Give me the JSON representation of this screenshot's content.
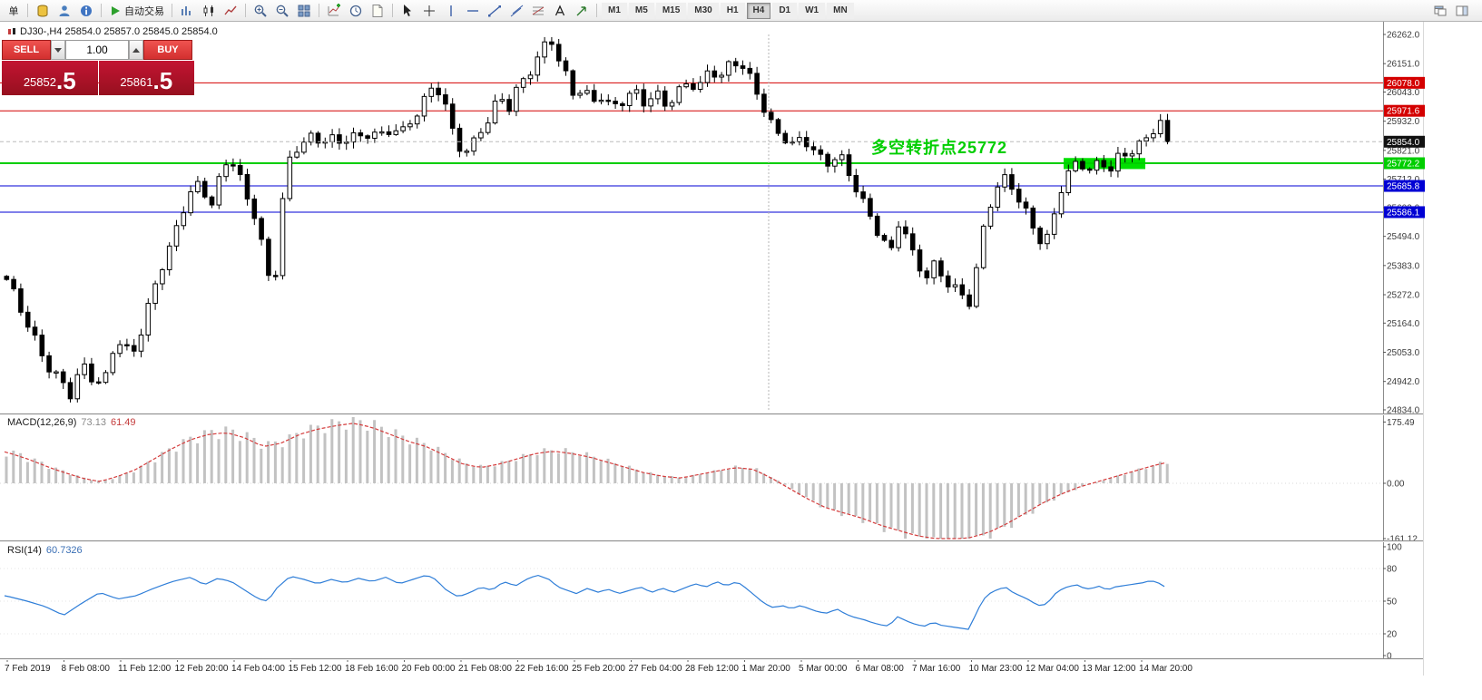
{
  "toolbar": {
    "new_order_label": "单",
    "autotrading_label": "自动交易",
    "timeframes": [
      "M1",
      "M5",
      "M15",
      "M30",
      "H1",
      "H4",
      "D1",
      "W1",
      "MN"
    ],
    "active_timeframe": "H4"
  },
  "trade_panel": {
    "sell_label": "SELL",
    "buy_label": "BUY",
    "volume": "1.00",
    "sell_price_small": "25852",
    "sell_price_large": ".5",
    "buy_price_small": "25861",
    "buy_price_large": ".5"
  },
  "chart": {
    "title": "DJ30-,H4 25854.0 25857.0 25845.0 25854.0",
    "annotation": {
      "text": "多空转折点25772",
      "color": "#00CE00"
    },
    "current_price": {
      "value": 25854.0,
      "label": "25854.0",
      "bg": "#111111"
    },
    "levels": [
      {
        "value": 26078.0,
        "label": "26078.0",
        "color": "#D40000",
        "width": 1
      },
      {
        "value": 25971.6,
        "label": "25971.6",
        "color": "#D40000",
        "width": 1
      },
      {
        "value": 25772.2,
        "label": "25772.2",
        "color": "#00CE00",
        "width": 2
      },
      {
        "value": 25685.8,
        "label": "25685.8",
        "color": "#0000D4",
        "width": 1
      },
      {
        "value": 25586.1,
        "label": "25586.1",
        "color": "#0000D4",
        "width": 1
      }
    ],
    "y_tick_labels": [
      "26262.0",
      "26151.0",
      "26043.0",
      "25932.0",
      "25821.0",
      "25712.0",
      "25603.0",
      "25494.0",
      "25383.0",
      "25272.0",
      "25164.0",
      "25053.0",
      "24942.0",
      "24834.0"
    ],
    "highlight_box": {
      "x_start": 1172,
      "x_end": 1262,
      "price_top": 25792,
      "price_bottom": 25750,
      "color": "#00DF00"
    },
    "separator_x": 847
  },
  "chart_data": {
    "type": "candlestick",
    "symbol": "DJ30-",
    "timeframe": "H4",
    "price_range": [
      24834.0,
      26262.0
    ],
    "note": "close path estimated from pixels as [x_px, price] anchors; OHLC derived",
    "last_close": 25854.0,
    "price_path": [
      [
        6,
        25330
      ],
      [
        28,
        25160
      ],
      [
        50,
        25000
      ],
      [
        66,
        24940
      ],
      [
        76,
        24890
      ],
      [
        88,
        25010
      ],
      [
        100,
        24950
      ],
      [
        112,
        24930
      ],
      [
        122,
        25060
      ],
      [
        132,
        25100
      ],
      [
        142,
        25030
      ],
      [
        152,
        25120
      ],
      [
        164,
        25260
      ],
      [
        176,
        25380
      ],
      [
        188,
        25480
      ],
      [
        200,
        25600
      ],
      [
        212,
        25700
      ],
      [
        222,
        25660
      ],
      [
        232,
        25620
      ],
      [
        242,
        25740
      ],
      [
        252,
        25800
      ],
      [
        262,
        25720
      ],
      [
        272,
        25610
      ],
      [
        282,
        25560
      ],
      [
        292,
        25340
      ],
      [
        300,
        25300
      ],
      [
        306,
        25560
      ],
      [
        314,
        25760
      ],
      [
        324,
        25820
      ],
      [
        336,
        25880
      ],
      [
        348,
        25850
      ],
      [
        360,
        25880
      ],
      [
        372,
        25840
      ],
      [
        384,
        25890
      ],
      [
        396,
        25860
      ],
      [
        408,
        25900
      ],
      [
        420,
        25870
      ],
      [
        432,
        25910
      ],
      [
        444,
        25890
      ],
      [
        456,
        25960
      ],
      [
        468,
        26030
      ],
      [
        478,
        26070
      ],
      [
        488,
        26000
      ],
      [
        498,
        25870
      ],
      [
        508,
        25810
      ],
      [
        518,
        25840
      ],
      [
        528,
        25900
      ],
      [
        538,
        25950
      ],
      [
        548,
        26030
      ],
      [
        558,
        25980
      ],
      [
        568,
        26060
      ],
      [
        578,
        26100
      ],
      [
        588,
        26160
      ],
      [
        598,
        26220
      ],
      [
        606,
        26240
      ],
      [
        614,
        26160
      ],
      [
        622,
        26100
      ],
      [
        630,
        26030
      ],
      [
        640,
        26060
      ],
      [
        650,
        26000
      ],
      [
        660,
        26030
      ],
      [
        672,
        25980
      ],
      [
        684,
        26010
      ],
      [
        696,
        26050
      ],
      [
        708,
        26000
      ],
      [
        720,
        26040
      ],
      [
        732,
        25990
      ],
      [
        744,
        26040
      ],
      [
        756,
        26080
      ],
      [
        768,
        26060
      ],
      [
        780,
        26130
      ],
      [
        792,
        26100
      ],
      [
        802,
        26150
      ],
      [
        812,
        26160
      ],
      [
        822,
        26110
      ],
      [
        832,
        26040
      ],
      [
        842,
        25960
      ],
      [
        852,
        25890
      ],
      [
        862,
        25870
      ],
      [
        872,
        25840
      ],
      [
        882,
        25870
      ],
      [
        892,
        25830
      ],
      [
        902,
        25790
      ],
      [
        912,
        25770
      ],
      [
        922,
        25810
      ],
      [
        932,
        25740
      ],
      [
        942,
        25670
      ],
      [
        952,
        25600
      ],
      [
        962,
        25530
      ],
      [
        972,
        25470
      ],
      [
        980,
        25440
      ],
      [
        988,
        25550
      ],
      [
        996,
        25500
      ],
      [
        1004,
        25420
      ],
      [
        1012,
        25370
      ],
      [
        1020,
        25340
      ],
      [
        1028,
        25390
      ],
      [
        1036,
        25340
      ],
      [
        1044,
        25310
      ],
      [
        1052,
        25290
      ],
      [
        1060,
        25260
      ],
      [
        1068,
        25240
      ],
      [
        1076,
        25420
      ],
      [
        1084,
        25570
      ],
      [
        1092,
        25650
      ],
      [
        1100,
        25700
      ],
      [
        1108,
        25720
      ],
      [
        1116,
        25660
      ],
      [
        1124,
        25610
      ],
      [
        1132,
        25560
      ],
      [
        1140,
        25500
      ],
      [
        1148,
        25460
      ],
      [
        1156,
        25520
      ],
      [
        1164,
        25650
      ],
      [
        1172,
        25720
      ],
      [
        1180,
        25760
      ],
      [
        1188,
        25780
      ],
      [
        1196,
        25740
      ],
      [
        1204,
        25760
      ],
      [
        1212,
        25780
      ],
      [
        1220,
        25740
      ],
      [
        1228,
        25790
      ],
      [
        1236,
        25800
      ],
      [
        1244,
        25820
      ],
      [
        1252,
        25840
      ],
      [
        1260,
        25860
      ],
      [
        1268,
        25900
      ],
      [
        1276,
        25930
      ],
      [
        1288,
        25854
      ]
    ],
    "macd": {
      "title": "MACD(12,26,9)",
      "value_main": "73.13",
      "value_signal": "61.49",
      "y_ticks": [
        175.49,
        0,
        -161.12
      ],
      "y_tick_labels": [
        "175.49",
        "0.00",
        "-161.12"
      ],
      "path": [
        [
          6,
          90
        ],
        [
          30,
          70
        ],
        [
          60,
          40
        ],
        [
          90,
          15
        ],
        [
          110,
          5
        ],
        [
          130,
          20
        ],
        [
          150,
          40
        ],
        [
          170,
          70
        ],
        [
          190,
          100
        ],
        [
          210,
          125
        ],
        [
          230,
          140
        ],
        [
          250,
          145
        ],
        [
          270,
          130
        ],
        [
          290,
          105
        ],
        [
          310,
          115
        ],
        [
          330,
          140
        ],
        [
          350,
          155
        ],
        [
          370,
          165
        ],
        [
          390,
          172
        ],
        [
          410,
          160
        ],
        [
          430,
          140
        ],
        [
          450,
          120
        ],
        [
          470,
          105
        ],
        [
          490,
          80
        ],
        [
          510,
          55
        ],
        [
          530,
          45
        ],
        [
          550,
          55
        ],
        [
          570,
          70
        ],
        [
          590,
          85
        ],
        [
          610,
          92
        ],
        [
          630,
          85
        ],
        [
          650,
          75
        ],
        [
          670,
          60
        ],
        [
          690,
          45
        ],
        [
          710,
          30
        ],
        [
          730,
          20
        ],
        [
          750,
          15
        ],
        [
          770,
          25
        ],
        [
          790,
          35
        ],
        [
          810,
          45
        ],
        [
          830,
          40
        ],
        [
          850,
          15
        ],
        [
          870,
          -15
        ],
        [
          890,
          -45
        ],
        [
          910,
          -70
        ],
        [
          930,
          -85
        ],
        [
          950,
          -100
        ],
        [
          970,
          -120
        ],
        [
          990,
          -135
        ],
        [
          1010,
          -150
        ],
        [
          1030,
          -158
        ],
        [
          1050,
          -161
        ],
        [
          1070,
          -155
        ],
        [
          1090,
          -140
        ],
        [
          1110,
          -115
        ],
        [
          1130,
          -85
        ],
        [
          1150,
          -55
        ],
        [
          1170,
          -30
        ],
        [
          1190,
          -10
        ],
        [
          1210,
          5
        ],
        [
          1230,
          20
        ],
        [
          1250,
          35
        ],
        [
          1270,
          50
        ],
        [
          1288,
          61
        ]
      ]
    },
    "rsi": {
      "title": "RSI(14)",
      "value": "60.7326",
      "y_ticks": [
        100,
        80,
        50,
        20,
        0
      ],
      "y_tick_labels": [
        "100",
        "80",
        "50",
        "20",
        "0"
      ],
      "path": [
        [
          6,
          55
        ],
        [
          30,
          50
        ],
        [
          50,
          45
        ],
        [
          70,
          37
        ],
        [
          90,
          48
        ],
        [
          110,
          58
        ],
        [
          130,
          52
        ],
        [
          150,
          55
        ],
        [
          170,
          62
        ],
        [
          190,
          68
        ],
        [
          210,
          72
        ],
        [
          225,
          65
        ],
        [
          240,
          71
        ],
        [
          255,
          68
        ],
        [
          270,
          60
        ],
        [
          285,
          52
        ],
        [
          295,
          50
        ],
        [
          305,
          62
        ],
        [
          320,
          73
        ],
        [
          335,
          70
        ],
        [
          350,
          66
        ],
        [
          365,
          70
        ],
        [
          380,
          67
        ],
        [
          395,
          71
        ],
        [
          410,
          68
        ],
        [
          425,
          72
        ],
        [
          440,
          66
        ],
        [
          455,
          70
        ],
        [
          470,
          74
        ],
        [
          480,
          70
        ],
        [
          492,
          60
        ],
        [
          505,
          54
        ],
        [
          518,
          58
        ],
        [
          530,
          63
        ],
        [
          542,
          60
        ],
        [
          555,
          68
        ],
        [
          568,
          64
        ],
        [
          580,
          70
        ],
        [
          592,
          74
        ],
        [
          605,
          70
        ],
        [
          615,
          63
        ],
        [
          625,
          60
        ],
        [
          635,
          57
        ],
        [
          648,
          62
        ],
        [
          658,
          58
        ],
        [
          670,
          61
        ],
        [
          682,
          57
        ],
        [
          694,
          60
        ],
        [
          706,
          63
        ],
        [
          718,
          58
        ],
        [
          730,
          62
        ],
        [
          742,
          58
        ],
        [
          754,
          62
        ],
        [
          766,
          66
        ],
        [
          778,
          63
        ],
        [
          790,
          68
        ],
        [
          800,
          64
        ],
        [
          812,
          68
        ],
        [
          822,
          62
        ],
        [
          832,
          55
        ],
        [
          842,
          48
        ],
        [
          852,
          44
        ],
        [
          862,
          46
        ],
        [
          872,
          43
        ],
        [
          882,
          46
        ],
        [
          892,
          43
        ],
        [
          902,
          40
        ],
        [
          912,
          39
        ],
        [
          922,
          43
        ],
        [
          932,
          38
        ],
        [
          942,
          35
        ],
        [
          952,
          33
        ],
        [
          962,
          30
        ],
        [
          972,
          28
        ],
        [
          980,
          27
        ],
        [
          988,
          36
        ],
        [
          996,
          33
        ],
        [
          1004,
          30
        ],
        [
          1012,
          28
        ],
        [
          1020,
          27
        ],
        [
          1028,
          31
        ],
        [
          1036,
          28
        ],
        [
          1044,
          27
        ],
        [
          1052,
          26
        ],
        [
          1060,
          25
        ],
        [
          1068,
          24
        ],
        [
          1076,
          40
        ],
        [
          1084,
          52
        ],
        [
          1092,
          58
        ],
        [
          1100,
          61
        ],
        [
          1108,
          63
        ],
        [
          1116,
          58
        ],
        [
          1124,
          55
        ],
        [
          1132,
          52
        ],
        [
          1140,
          48
        ],
        [
          1148,
          45
        ],
        [
          1156,
          50
        ],
        [
          1164,
          58
        ],
        [
          1172,
          62
        ],
        [
          1180,
          64
        ],
        [
          1188,
          65
        ],
        [
          1196,
          61
        ],
        [
          1204,
          62
        ],
        [
          1212,
          64
        ],
        [
          1220,
          60
        ],
        [
          1228,
          63
        ],
        [
          1236,
          64
        ],
        [
          1244,
          65
        ],
        [
          1252,
          66
        ],
        [
          1260,
          67
        ],
        [
          1268,
          69
        ],
        [
          1276,
          67
        ],
        [
          1288,
          61
        ]
      ]
    },
    "time_labels": [
      "7 Feb 2019",
      "8 Feb 08:00",
      "11 Feb 12:00",
      "12 Feb 20:00",
      "14 Feb 04:00",
      "15 Feb 12:00",
      "18 Feb 16:00",
      "20 Feb 00:00",
      "21 Feb 08:00",
      "22 Feb 16:00",
      "25 Feb 20:00",
      "27 Feb 04:00",
      "28 Feb 12:00",
      "1 Mar 20:00",
      "5 Mar 00:00",
      "6 Mar 08:00",
      "7 Mar 16:00",
      "10 Mar 23:00",
      "12 Mar 04:00",
      "13 Mar 12:00",
      "14 Mar 20:00"
    ]
  }
}
